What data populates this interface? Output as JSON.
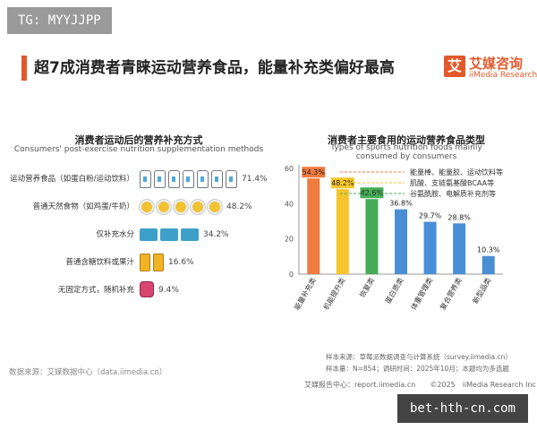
{
  "tag": "TG: MYYJJPP",
  "title": "超7成消费者青睐运动营养食品，能量补充类偏好最高",
  "logo": {
    "mark": "艾",
    "cn": "艾媒咨询",
    "en": "iiMedia Research"
  },
  "left_chart": {
    "title_cn": "消费者运动后的营养补充方式",
    "title_en": "Consumers' post-exercise nutrition supplementation methods"
  },
  "right_chart": {
    "title_cn": "消费者主要食用的运动营养食品类型",
    "title_en": "Types of sports nutrition foods mainly consumed by consumers"
  },
  "chart_data": [
    {
      "type": "bar",
      "orientation": "horizontal",
      "title": "消费者运动后的营养补充方式",
      "subtitle": "Consumers' post-exercise nutrition supplementation methods",
      "categories": [
        "运动营养食品（如蛋白粉/运动饮料）",
        "普通天然食物（如鸡蛋/牛奶）",
        "仅补充水分",
        "普通含糖饮料或果汁",
        "无固定方式，随机补充"
      ],
      "values": [
        71.4,
        48.2,
        34.2,
        16.6,
        9.4
      ],
      "value_labels": [
        "71.4%",
        "48.2%",
        "34.2%",
        "16.6%",
        "9.4%"
      ],
      "icons": [
        "supplement-bag-icon",
        "egg-icon",
        "water-bottle-icon",
        "drink-can-icon",
        "snack-box-icon"
      ]
    },
    {
      "type": "bar",
      "title": "消费者主要食用的运动营养食品类型",
      "subtitle": "Types of sports nutrition foods mainly consumed by consumers",
      "categories": [
        "能量补充类",
        "机能提升类",
        "恢复类",
        "蛋白质类",
        "体重管理类",
        "复合营养类",
        "新型品类"
      ],
      "values": [
        54.3,
        48.2,
        42.6,
        36.8,
        29.7,
        28.8,
        10.3
      ],
      "value_labels": [
        "54.3%",
        "48.2%",
        "42.6%",
        "36.8%",
        "29.7%",
        "28.8%",
        "10.3%"
      ],
      "colors": [
        "#f07b3f",
        "#f7c52c",
        "#46ad57",
        "#4a8fd6",
        "#4a8fd6",
        "#4a8fd6",
        "#4a8fd6"
      ],
      "ylim": [
        0,
        60
      ],
      "yticks": [
        "0",
        "20",
        "40",
        "60"
      ],
      "annotations": [
        "能量棒、能量胶、运动饮料等",
        "肌酸、支链氨基酸BCAA等",
        "谷氨酰胺、电解质补充剂等"
      ],
      "grid": false
    }
  ],
  "source_left": "数据来源：艾媒数据中心（data.iimedia.cn）",
  "source_right": [
    "样本来源：草莓派数据调查与计算系统（survey.iimedia.cn）",
    "样本量：N=854；调研时间：2025年10月；本题均为多选题"
  ],
  "footer": "艾媒报告中心：report.iimedia.cn　　©2025　iiMedia Research Inc",
  "watermark": "bet-hth-cn.com"
}
